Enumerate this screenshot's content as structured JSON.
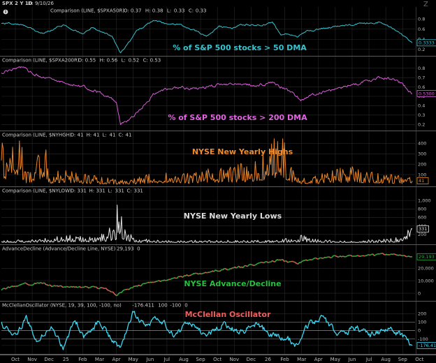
{
  "header": {
    "symbol": "SPX 2 Y 1D",
    "date": "D: 9/10/26",
    "logo": "Z"
  },
  "colors": {
    "cyan": "#35c4d0",
    "magenta": "#d65cd6",
    "orange": "#e8862a",
    "white": "#e6e6e6",
    "green": "#22b33a",
    "red": "#e05a5a",
    "osc": "#3fd6f0",
    "grid": "#2a2a2a",
    "sep": "#5a5a5a"
  },
  "chart_data": [
    {
      "type": "line",
      "id": "p50",
      "header": "Comparison (LINE, $SPXA50R)",
      "ohlc": [
        [
          "O:",
          "0.37"
        ],
        [
          "H:",
          "0.38"
        ],
        [
          "L:",
          "0.33"
        ],
        [
          "C:",
          "0.33"
        ]
      ],
      "annotation": "% of S&P 500 stocks > 50 DMA",
      "yticks": [
        "0.8",
        "0.6",
        "0.4",
        "0.2"
      ],
      "ytickvals": [
        0.8,
        0.6,
        0.4,
        0.2
      ],
      "ylim": [
        0.1,
        0.9
      ],
      "last": "0.3333",
      "lastval": 0.33,
      "anchors": [
        [
          0,
          0.72
        ],
        [
          0.05,
          0.7
        ],
        [
          0.1,
          0.52
        ],
        [
          0.15,
          0.68
        ],
        [
          0.2,
          0.5
        ],
        [
          0.22,
          0.63
        ],
        [
          0.27,
          0.45
        ],
        [
          0.29,
          0.12
        ],
        [
          0.31,
          0.34
        ],
        [
          0.33,
          0.56
        ],
        [
          0.37,
          0.78
        ],
        [
          0.4,
          0.7
        ],
        [
          0.43,
          0.7
        ],
        [
          0.47,
          0.58
        ],
        [
          0.5,
          0.46
        ],
        [
          0.53,
          0.66
        ],
        [
          0.56,
          0.6
        ],
        [
          0.59,
          0.7
        ],
        [
          0.63,
          0.66
        ],
        [
          0.66,
          0.74
        ],
        [
          0.68,
          0.5
        ],
        [
          0.7,
          0.52
        ],
        [
          0.72,
          0.44
        ],
        [
          0.74,
          0.55
        ],
        [
          0.78,
          0.62
        ],
        [
          0.82,
          0.66
        ],
        [
          0.87,
          0.7
        ],
        [
          0.92,
          0.74
        ],
        [
          0.96,
          0.58
        ],
        [
          1.0,
          0.33
        ]
      ]
    },
    {
      "type": "line",
      "id": "p200",
      "header": "Comparison (LINE, $SPXA200R)",
      "ohlc": [
        [
          "O:",
          "0.55"
        ],
        [
          "H:",
          "0.56"
        ],
        [
          "L:",
          "0.52"
        ],
        [
          "C:",
          "0.53"
        ]
      ],
      "annotation": "% of S&P 500 stocks > 200 DMA",
      "yticks": [
        "0.8",
        "0.7",
        "0.6",
        "0.5",
        "0.4",
        "0.3",
        "0.2"
      ],
      "ytickvals": [
        0.8,
        0.7,
        0.6,
        0.5,
        0.4,
        0.3,
        0.2
      ],
      "ylim": [
        0.15,
        0.85
      ],
      "last": "0.5300",
      "lastval": 0.53,
      "anchors": [
        [
          0,
          0.76
        ],
        [
          0.05,
          0.8
        ],
        [
          0.1,
          0.7
        ],
        [
          0.15,
          0.65
        ],
        [
          0.2,
          0.6
        ],
        [
          0.25,
          0.52
        ],
        [
          0.28,
          0.44
        ],
        [
          0.29,
          0.2
        ],
        [
          0.31,
          0.25
        ],
        [
          0.34,
          0.36
        ],
        [
          0.37,
          0.52
        ],
        [
          0.42,
          0.6
        ],
        [
          0.47,
          0.58
        ],
        [
          0.52,
          0.62
        ],
        [
          0.57,
          0.64
        ],
        [
          0.62,
          0.62
        ],
        [
          0.66,
          0.64
        ],
        [
          0.7,
          0.56
        ],
        [
          0.73,
          0.46
        ],
        [
          0.76,
          0.52
        ],
        [
          0.8,
          0.56
        ],
        [
          0.86,
          0.63
        ],
        [
          0.92,
          0.7
        ],
        [
          0.96,
          0.68
        ],
        [
          1.0,
          0.53
        ]
      ]
    },
    {
      "type": "line",
      "id": "nyhigh",
      "header": "Comparison (LINE, $NYHGH)",
      "ohlc": [
        [
          "O:",
          "41"
        ],
        [
          "H:",
          "41"
        ],
        [
          "L:",
          "41"
        ],
        [
          "C:",
          "41"
        ]
      ],
      "annotation": "NYSE New Yearly Highs",
      "yticks": [
        "400",
        "300",
        "200",
        "100"
      ],
      "ytickvals": [
        400,
        300,
        200,
        100
      ],
      "ylim": [
        0,
        450
      ],
      "last": "41",
      "lastval": 41,
      "anchors": [
        [
          0,
          320
        ],
        [
          0.02,
          140
        ],
        [
          0.04,
          360
        ],
        [
          0.06,
          80
        ],
        [
          0.08,
          120
        ],
        [
          0.1,
          280
        ],
        [
          0.12,
          60
        ],
        [
          0.15,
          100
        ],
        [
          0.2,
          60
        ],
        [
          0.25,
          40
        ],
        [
          0.3,
          30
        ],
        [
          0.35,
          60
        ],
        [
          0.4,
          80
        ],
        [
          0.45,
          60
        ],
        [
          0.5,
          90
        ],
        [
          0.55,
          100
        ],
        [
          0.6,
          120
        ],
        [
          0.65,
          200
        ],
        [
          0.68,
          340
        ],
        [
          0.7,
          150
        ],
        [
          0.72,
          60
        ],
        [
          0.75,
          40
        ],
        [
          0.8,
          80
        ],
        [
          0.85,
          100
        ],
        [
          0.9,
          70
        ],
        [
          0.95,
          60
        ],
        [
          1.0,
          41
        ]
      ]
    },
    {
      "type": "line",
      "id": "nylow",
      "header": "Comparison (LINE, $NYLOW)",
      "ohlc": [
        [
          "O:",
          "331"
        ],
        [
          "H:",
          "331"
        ],
        [
          "L:",
          "331"
        ],
        [
          "C:",
          "331"
        ]
      ],
      "annotation": "NYSE New Yearly Lows",
      "yticks": [
        "1,000",
        "800",
        "600",
        "400",
        "200"
      ],
      "ytickvals": [
        1000,
        800,
        600,
        400,
        200
      ],
      "ylim": [
        0,
        1150
      ],
      "last": "331",
      "lastval": 331,
      "anchors": [
        [
          0,
          30
        ],
        [
          0.05,
          40
        ],
        [
          0.1,
          60
        ],
        [
          0.15,
          90
        ],
        [
          0.2,
          120
        ],
        [
          0.22,
          60
        ],
        [
          0.26,
          180
        ],
        [
          0.28,
          300
        ],
        [
          0.285,
          1150
        ],
        [
          0.29,
          600
        ],
        [
          0.3,
          200
        ],
        [
          0.33,
          60
        ],
        [
          0.4,
          30
        ],
        [
          0.5,
          40
        ],
        [
          0.6,
          30
        ],
        [
          0.7,
          60
        ],
        [
          0.73,
          100
        ],
        [
          0.78,
          40
        ],
        [
          0.85,
          30
        ],
        [
          0.9,
          40
        ],
        [
          0.95,
          60
        ],
        [
          0.98,
          100
        ],
        [
          1.0,
          331
        ]
      ]
    },
    {
      "type": "line",
      "id": "adl",
      "header": "AdvanceDecline (Advance/Decline Line, NYSE)",
      "ohlc": [
        [
          "",
          "29,193"
        ],
        [
          "",
          "0"
        ]
      ],
      "annotation": "NYSE Advance/Decline",
      "yticks": [
        "20,000",
        "10,000",
        "0"
      ],
      "ytickvals": [
        20000,
        10000,
        0
      ],
      "ylim": [
        -5000,
        33000
      ],
      "last": "29,193",
      "lastval": 29193,
      "anchors": [
        [
          0,
          3000
        ],
        [
          0.05,
          7000
        ],
        [
          0.1,
          8000
        ],
        [
          0.12,
          6000
        ],
        [
          0.17,
          5000
        ],
        [
          0.22,
          5000
        ],
        [
          0.26,
          3000
        ],
        [
          0.28,
          -1500
        ],
        [
          0.3,
          2000
        ],
        [
          0.34,
          7000
        ],
        [
          0.4,
          11000
        ],
        [
          0.46,
          15000
        ],
        [
          0.52,
          18000
        ],
        [
          0.58,
          21000
        ],
        [
          0.64,
          24500
        ],
        [
          0.68,
          26500
        ],
        [
          0.72,
          24000
        ],
        [
          0.76,
          28000
        ],
        [
          0.82,
          29500
        ],
        [
          0.88,
          30500
        ],
        [
          0.94,
          31000
        ],
        [
          0.97,
          30500
        ],
        [
          1.0,
          29193
        ]
      ]
    },
    {
      "type": "line",
      "id": "mco",
      "header": "McClellanOscillator (NYSE, 19, 39, 100, -100, no)",
      "ohlc": [
        [
          "",
          "-176.411"
        ],
        [
          "",
          "100"
        ],
        [
          "",
          "-100"
        ],
        [
          "",
          "0"
        ]
      ],
      "annotation": "McClellan Oscillator",
      "yticks": [
        "200",
        "100",
        "0",
        "-100",
        "-176.41"
      ],
      "ytickvals": [
        200,
        100,
        0,
        -100,
        -176.41
      ],
      "ylim": [
        -260,
        260
      ],
      "last": "-176.41",
      "lastval": -176.41,
      "levels": [
        100,
        0,
        -100
      ],
      "anchors": [
        [
          0,
          80
        ],
        [
          0.03,
          -60
        ],
        [
          0.06,
          140
        ],
        [
          0.09,
          -120
        ],
        [
          0.12,
          60
        ],
        [
          0.15,
          -200
        ],
        [
          0.18,
          120
        ],
        [
          0.2,
          -60
        ],
        [
          0.24,
          100
        ],
        [
          0.27,
          -100
        ],
        [
          0.29,
          -230
        ],
        [
          0.32,
          230
        ],
        [
          0.35,
          60
        ],
        [
          0.38,
          150
        ],
        [
          0.42,
          -40
        ],
        [
          0.46,
          80
        ],
        [
          0.5,
          -60
        ],
        [
          0.54,
          90
        ],
        [
          0.58,
          -20
        ],
        [
          0.62,
          60
        ],
        [
          0.66,
          -40
        ],
        [
          0.7,
          -100
        ],
        [
          0.72,
          -200
        ],
        [
          0.74,
          40
        ],
        [
          0.78,
          150
        ],
        [
          0.82,
          -60
        ],
        [
          0.86,
          40
        ],
        [
          0.9,
          -60
        ],
        [
          0.94,
          20
        ],
        [
          0.97,
          -40
        ],
        [
          1.0,
          -176.41
        ]
      ]
    }
  ],
  "xaxis": [
    "Oct",
    "Nov",
    "Dec",
    "25",
    "Feb",
    "Mar",
    "Apr",
    "May",
    "Jun",
    "Jul",
    "Aug",
    "Sep",
    "Oct",
    "Nov",
    "Dec",
    "26",
    "Feb",
    "Mar",
    "Apr",
    "May",
    "Jun",
    "Jul",
    "Aug",
    "Sep",
    "Oct"
  ]
}
